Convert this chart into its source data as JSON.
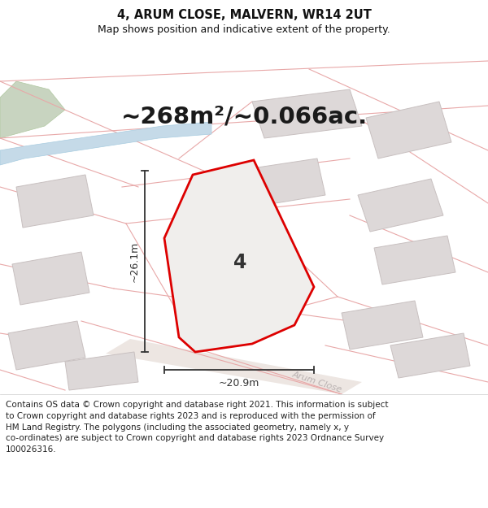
{
  "title_line1": "4, ARUM CLOSE, MALVERN, WR14 2UT",
  "title_line2": "Map shows position and indicative extent of the property.",
  "area_text": "~268m²/~0.066ac.",
  "plot_number": "4",
  "dim_vertical": "~26.1m",
  "dim_horizontal": "~20.9m",
  "street_label": "Arum Close",
  "footer_text": "Contains OS data © Crown copyright and database right 2021. This information is subject\nto Crown copyright and database rights 2023 and is reproduced with the permission of\nHM Land Registry. The polygons (including the associated geometry, namely x, y\nco-ordinates) are subject to Crown copyright and database rights 2023 Ordnance Survey\n100026316.",
  "map_bg": "#f5f2f0",
  "plot_fill": "#f0eeec",
  "plot_edge": "#dd0000",
  "building_color": "#ddd8d8",
  "building_edge": "#c8c0c0",
  "water_color": "#c5dae8",
  "green_color": "#c8d4c0",
  "parcel_line_color": "#e8a8a8",
  "dim_color": "#333333",
  "street_color": "#b8b0b0",
  "title_fontsize": 10.5,
  "subtitle_fontsize": 9,
  "area_fontsize": 21,
  "plot_num_fontsize": 17,
  "dim_fontsize": 9,
  "street_fontsize": 8,
  "footer_fontsize": 7.5
}
